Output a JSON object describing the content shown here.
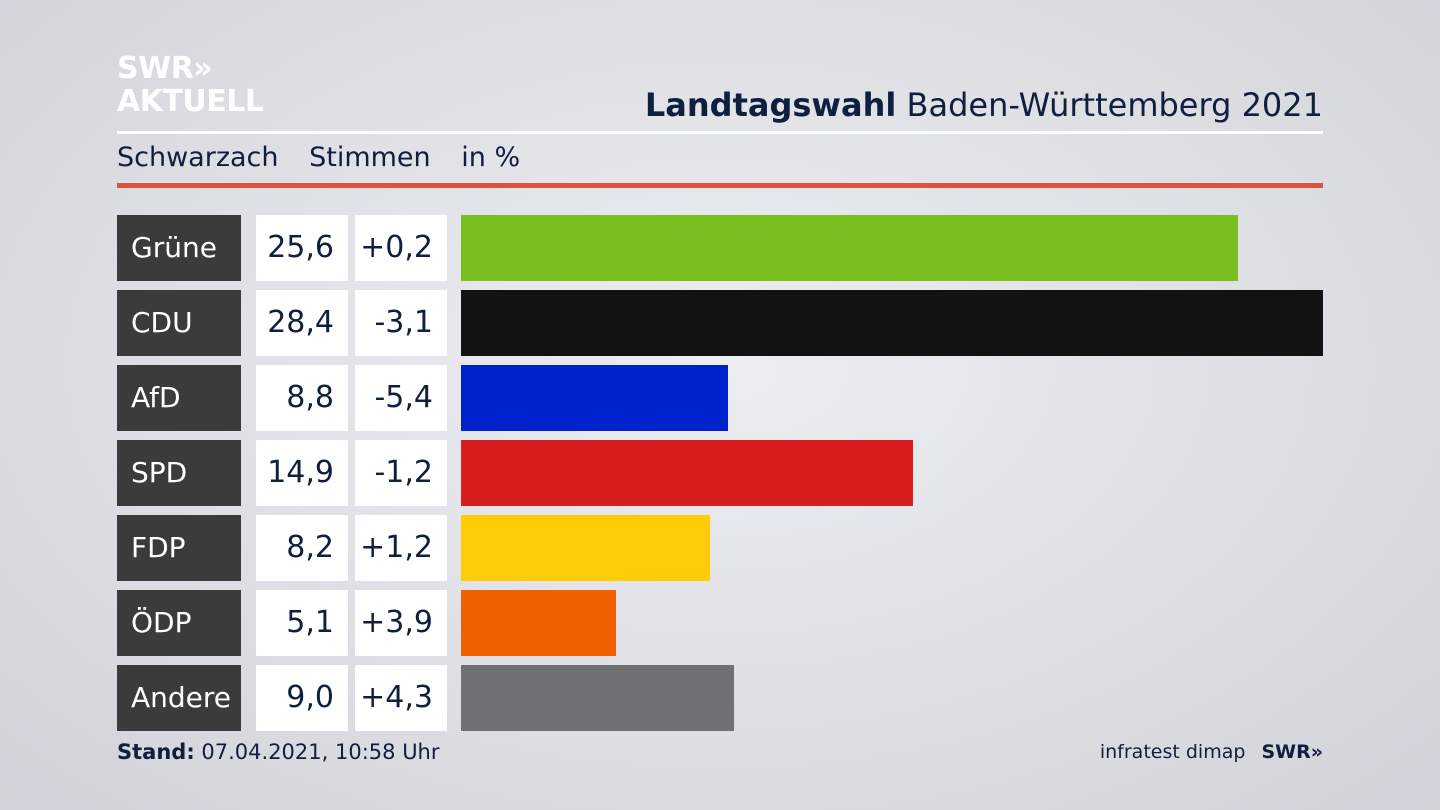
{
  "brand": {
    "line1": "SWR»",
    "line2": "AKTUELL"
  },
  "header": {
    "title_bold": "Landtagswahl",
    "title_rest": "Baden-Württemberg 2021"
  },
  "subheader": {
    "place": "Schwarzach",
    "measure": "Stimmen",
    "unit": "in %"
  },
  "footer": {
    "stand_label": "Stand:",
    "stand_value": "07.04.2021, 10:58 Uhr",
    "source": "infratest dimap",
    "source_logo": "SWR»"
  },
  "chart_data": {
    "type": "bar",
    "orientation": "horizontal",
    "categories": [
      "Grüne",
      "CDU",
      "AfD",
      "SPD",
      "FDP",
      "ÖDP",
      "Andere"
    ],
    "values": [
      25.6,
      28.4,
      8.8,
      14.9,
      8.2,
      5.1,
      9.0
    ],
    "value_labels": [
      "25,6",
      "28,4",
      "8,8",
      "14,9",
      "8,2",
      "5,1",
      "9,0"
    ],
    "diff_labels": [
      "+0,2",
      "-3,1",
      "-5,4",
      "-1,2",
      "+1,2",
      "+3,9",
      "+4,3"
    ],
    "colors": [
      "#78be1e",
      "#121212",
      "#0022cc",
      "#d81e1e",
      "#ffcc08",
      "#ee6100",
      "#707173"
    ],
    "xlim": [
      0,
      28.4
    ]
  }
}
